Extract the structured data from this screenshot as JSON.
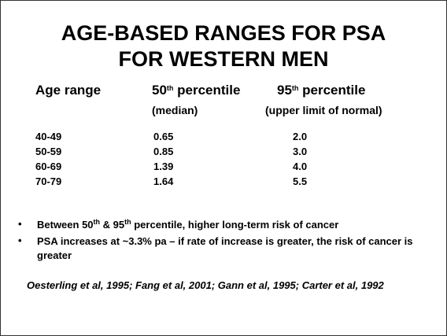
{
  "title": {
    "line1": "AGE-BASED RANGES FOR PSA",
    "line2": "FOR WESTERN MEN"
  },
  "table": {
    "headers": [
      [
        {
          "text": "Age range"
        }
      ],
      [
        {
          "text": "50"
        },
        {
          "text": "th",
          "sup": true
        },
        {
          "text": " percentile"
        }
      ],
      [
        {
          "text": "95"
        },
        {
          "text": "th",
          "sup": true
        },
        {
          "text": " percentile"
        }
      ]
    ],
    "subheaders": {
      "1": "(median)",
      "2": "(upper limit of normal)"
    },
    "rows": [
      [
        "40-49",
        "0.65",
        "2.0"
      ],
      [
        "50-59",
        "0.85",
        "3.0"
      ],
      [
        "60-69",
        "1.39",
        "4.0"
      ],
      [
        "70-79",
        "1.64",
        "5.5"
      ]
    ]
  },
  "bullets": [
    [
      {
        "text": "Between 50"
      },
      {
        "text": "th",
        "sup": true
      },
      {
        "text": " & 95"
      },
      {
        "text": "th",
        "sup": true
      },
      {
        "text": " percentile, higher long-term risk of cancer"
      }
    ],
    [
      {
        "text": "PSA increases at ~3.3% pa – if rate of increase is greater, the risk of cancer is greater"
      }
    ]
  ],
  "citation": "Oesterling et al, 1995; Fang et al, 2001; Gann et al, 1995; Carter et al, 1992"
}
